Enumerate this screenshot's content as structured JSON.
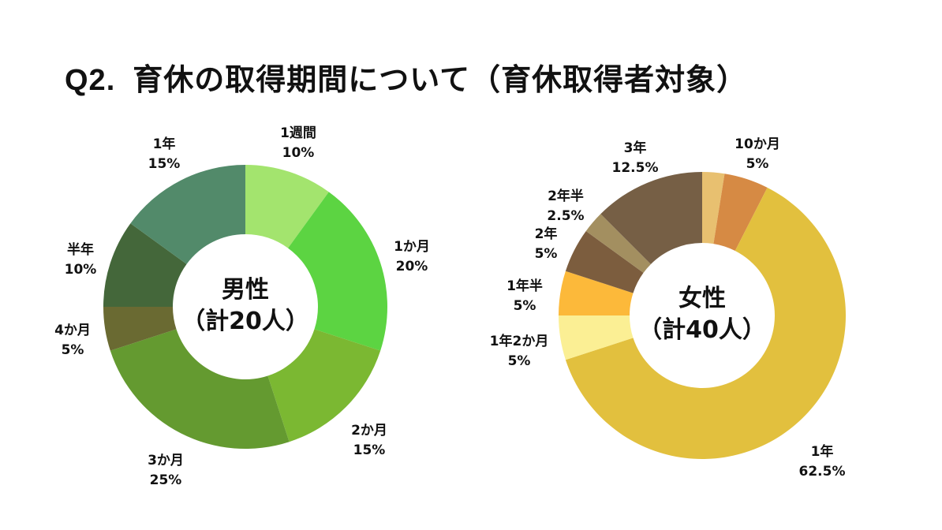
{
  "title": {
    "question": "Q2.",
    "text": "育休の取得期間について（育休取得者対象）"
  },
  "chart_data": [
    {
      "type": "pie",
      "center_label": [
        "男性",
        "（計20人）"
      ],
      "slices": [
        {
          "label": "1週間",
          "value": 10,
          "display": "10%",
          "color": "#a3e46e"
        },
        {
          "label": "1か月",
          "value": 20,
          "display": "20%",
          "color": "#5cd442"
        },
        {
          "label": "2か月",
          "value": 15,
          "display": "15%",
          "color": "#7bb832"
        },
        {
          "label": "3か月",
          "value": 25,
          "display": "25%",
          "color": "#649a30"
        },
        {
          "label": "4か月",
          "value": 5,
          "display": "5%",
          "color": "#6a6a32"
        },
        {
          "label": "半年",
          "value": 10,
          "display": "10%",
          "color": "#44673a"
        },
        {
          "label": "1年",
          "value": 15,
          "display": "15%",
          "color": "#528a6a"
        }
      ]
    },
    {
      "type": "pie",
      "center_label": [
        "女性",
        "（計40人）"
      ],
      "slices": [
        {
          "label": "10か月",
          "value": 2.5,
          "display": "",
          "color": "#e8c070"
        },
        {
          "label": "10か月",
          "value": 5,
          "display": "5%",
          "color": "#d68a44"
        },
        {
          "label": "1年",
          "value": 62.5,
          "display": "62.5%",
          "color": "#e2c03e"
        },
        {
          "label": "1年2か月",
          "value": 5,
          "display": "5%",
          "color": "#fbef94"
        },
        {
          "label": "1年半",
          "value": 5,
          "display": "5%",
          "color": "#fcb93a"
        },
        {
          "label": "2年",
          "value": 5,
          "display": "5%",
          "color": "#7c5d3e"
        },
        {
          "label": "2年半",
          "value": 2.5,
          "display": "2.5%",
          "color": "#a38f60"
        },
        {
          "label": "3年",
          "value": 12.5,
          "display": "12.5%",
          "color": "#765f45"
        }
      ]
    }
  ]
}
